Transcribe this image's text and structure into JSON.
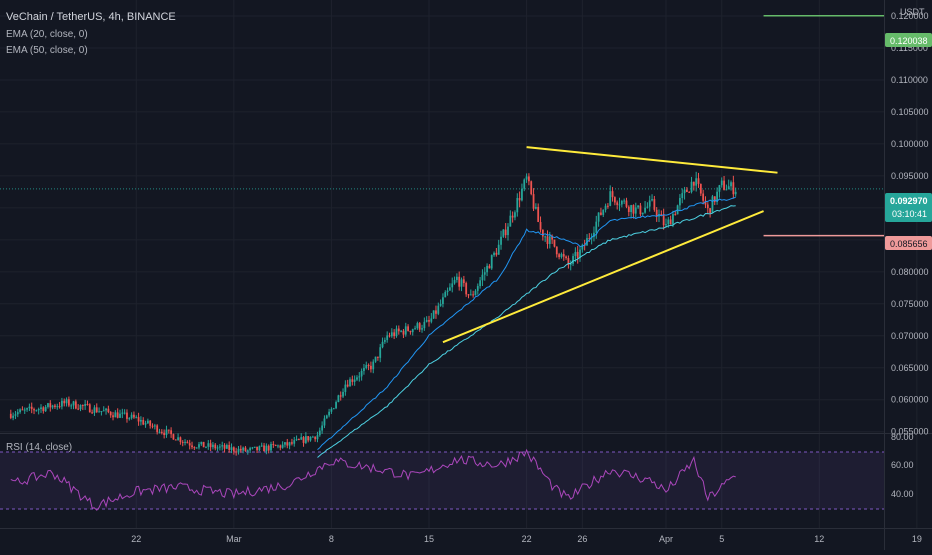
{
  "header": {
    "title": "VeChain / TetherUS, 4h, BINANCE",
    "indicators": [
      "EMA (20, close, 0)",
      "EMA (50, close, 0)"
    ]
  },
  "axis": {
    "currency": "USDT",
    "price_ticks": [
      "0.120000",
      "0.115000",
      "0.110000",
      "0.105000",
      "0.100000",
      "0.095000",
      "0.090000",
      "0.085000",
      "0.080000",
      "0.075000",
      "0.070000",
      "0.065000",
      "0.060000",
      "0.055000"
    ],
    "time_ticks": [
      "22",
      "Mar",
      "8",
      "15",
      "22",
      "26",
      "Apr",
      "5",
      "12",
      "19"
    ]
  },
  "price_labels": {
    "target": "0.120038",
    "last": "0.092970",
    "countdown": "03:10:41",
    "stop": "0.085656"
  },
  "rsi": {
    "label": "RSI (14, close)",
    "ticks": [
      "80.00",
      "60.00",
      "40.00"
    ],
    "upper": 70,
    "lower": 30
  },
  "colors": {
    "background": "#131722",
    "up": "#26a69a",
    "down": "#ef5350",
    "ema20": "#2196f3",
    "ema50": "#4dd0e1",
    "trendline": "#ffeb3b",
    "target_line": "#66bb6a",
    "stop_line": "#ef9a9a",
    "rsi_line": "#ab47bc"
  },
  "chart_data": {
    "type": "candlestick",
    "timeframe": "4h",
    "y_axis_range": [
      0.0548,
      0.1225
    ],
    "rsi_axis_range": [
      20,
      85
    ],
    "price_anchors": [
      {
        "date": "2021-02-13",
        "close": 0.0578
      },
      {
        "date": "2021-02-17",
        "close": 0.0595
      },
      {
        "date": "2021-02-22",
        "close": 0.057
      },
      {
        "date": "2021-02-26",
        "close": 0.053
      },
      {
        "date": "2021-03-02",
        "close": 0.052
      },
      {
        "date": "2021-03-05",
        "close": 0.053
      },
      {
        "date": "2021-03-07",
        "close": 0.0545
      },
      {
        "date": "2021-03-09",
        "close": 0.0625
      },
      {
        "date": "2021-03-11",
        "close": 0.0655
      },
      {
        "date": "2021-03-12",
        "close": 0.07
      },
      {
        "date": "2021-03-15",
        "close": 0.072
      },
      {
        "date": "2021-03-17",
        "close": 0.079
      },
      {
        "date": "2021-03-18",
        "close": 0.076
      },
      {
        "date": "2021-03-20",
        "close": 0.084
      },
      {
        "date": "2021-03-22",
        "close": 0.0945
      },
      {
        "date": "2021-03-23",
        "close": 0.0865
      },
      {
        "date": "2021-03-24",
        "close": 0.084
      },
      {
        "date": "2021-03-25",
        "close": 0.081
      },
      {
        "date": "2021-03-26",
        "close": 0.0835
      },
      {
        "date": "2021-03-28",
        "close": 0.092
      },
      {
        "date": "2021-03-30",
        "close": 0.0895
      },
      {
        "date": "2021-03-31",
        "close": 0.0905
      },
      {
        "date": "2021-04-01",
        "close": 0.087
      },
      {
        "date": "2021-04-02",
        "close": 0.091
      },
      {
        "date": "2021-04-03",
        "close": 0.0945
      },
      {
        "date": "2021-04-04",
        "close": 0.0895
      },
      {
        "date": "2021-04-05",
        "close": 0.0935
      },
      {
        "date": "2021-04-06",
        "close": 0.093
      }
    ],
    "ema20_anchors": [
      {
        "date": "2021-03-07",
        "value": 0.0522
      },
      {
        "date": "2021-03-12",
        "value": 0.062
      },
      {
        "date": "2021-03-15",
        "value": 0.07
      },
      {
        "date": "2021-03-20",
        "value": 0.079
      },
      {
        "date": "2021-03-22",
        "value": 0.0865
      },
      {
        "date": "2021-03-24",
        "value": 0.0855
      },
      {
        "date": "2021-03-26",
        "value": 0.084
      },
      {
        "date": "2021-03-28",
        "value": 0.088
      },
      {
        "date": "2021-04-01",
        "value": 0.089
      },
      {
        "date": "2021-04-04",
        "value": 0.091
      },
      {
        "date": "2021-04-06",
        "value": 0.0915
      }
    ],
    "ema50_anchors": [
      {
        "date": "2021-03-07",
        "value": 0.051
      },
      {
        "date": "2021-03-12",
        "value": 0.059
      },
      {
        "date": "2021-03-15",
        "value": 0.0655
      },
      {
        "date": "2021-03-20",
        "value": 0.073
      },
      {
        "date": "2021-03-24",
        "value": 0.08
      },
      {
        "date": "2021-03-28",
        "value": 0.085
      },
      {
        "date": "2021-04-01",
        "value": 0.087
      },
      {
        "date": "2021-04-06",
        "value": 0.0905
      }
    ],
    "rsi_anchors": [
      {
        "date": "2021-02-13",
        "value": 50
      },
      {
        "date": "2021-02-16",
        "value": 58
      },
      {
        "date": "2021-02-19",
        "value": 35
      },
      {
        "date": "2021-02-22",
        "value": 45
      },
      {
        "date": "2021-02-25",
        "value": 48
      },
      {
        "date": "2021-03-01",
        "value": 43
      },
      {
        "date": "2021-03-05",
        "value": 50
      },
      {
        "date": "2021-03-08",
        "value": 66
      },
      {
        "date": "2021-03-11",
        "value": 61
      },
      {
        "date": "2021-03-14",
        "value": 55
      },
      {
        "date": "2021-03-17",
        "value": 67
      },
      {
        "date": "2021-03-20",
        "value": 63
      },
      {
        "date": "2021-03-22",
        "value": 72
      },
      {
        "date": "2021-03-24",
        "value": 47
      },
      {
        "date": "2021-03-25",
        "value": 40
      },
      {
        "date": "2021-03-28",
        "value": 60
      },
      {
        "date": "2021-03-31",
        "value": 52
      },
      {
        "date": "2021-04-01",
        "value": 45
      },
      {
        "date": "2021-04-03",
        "value": 66
      },
      {
        "date": "2021-04-04",
        "value": 40
      },
      {
        "date": "2021-04-06",
        "value": 56
      }
    ],
    "trendlines": [
      {
        "name": "resistance",
        "from": {
          "date": "2021-03-22",
          "price": 0.0995
        },
        "to": {
          "date": "2021-04-09",
          "price": 0.0955
        }
      },
      {
        "name": "support",
        "from": {
          "date": "2021-03-16",
          "price": 0.069
        },
        "to": {
          "date": "2021-04-08",
          "price": 0.0895
        }
      }
    ],
    "horizontal_levels": [
      {
        "name": "target",
        "price": 0.120038,
        "from_date": "2021-04-08"
      },
      {
        "name": "stop",
        "price": 0.085656,
        "from_date": "2021-04-08"
      }
    ],
    "last_price": 0.09297
  }
}
